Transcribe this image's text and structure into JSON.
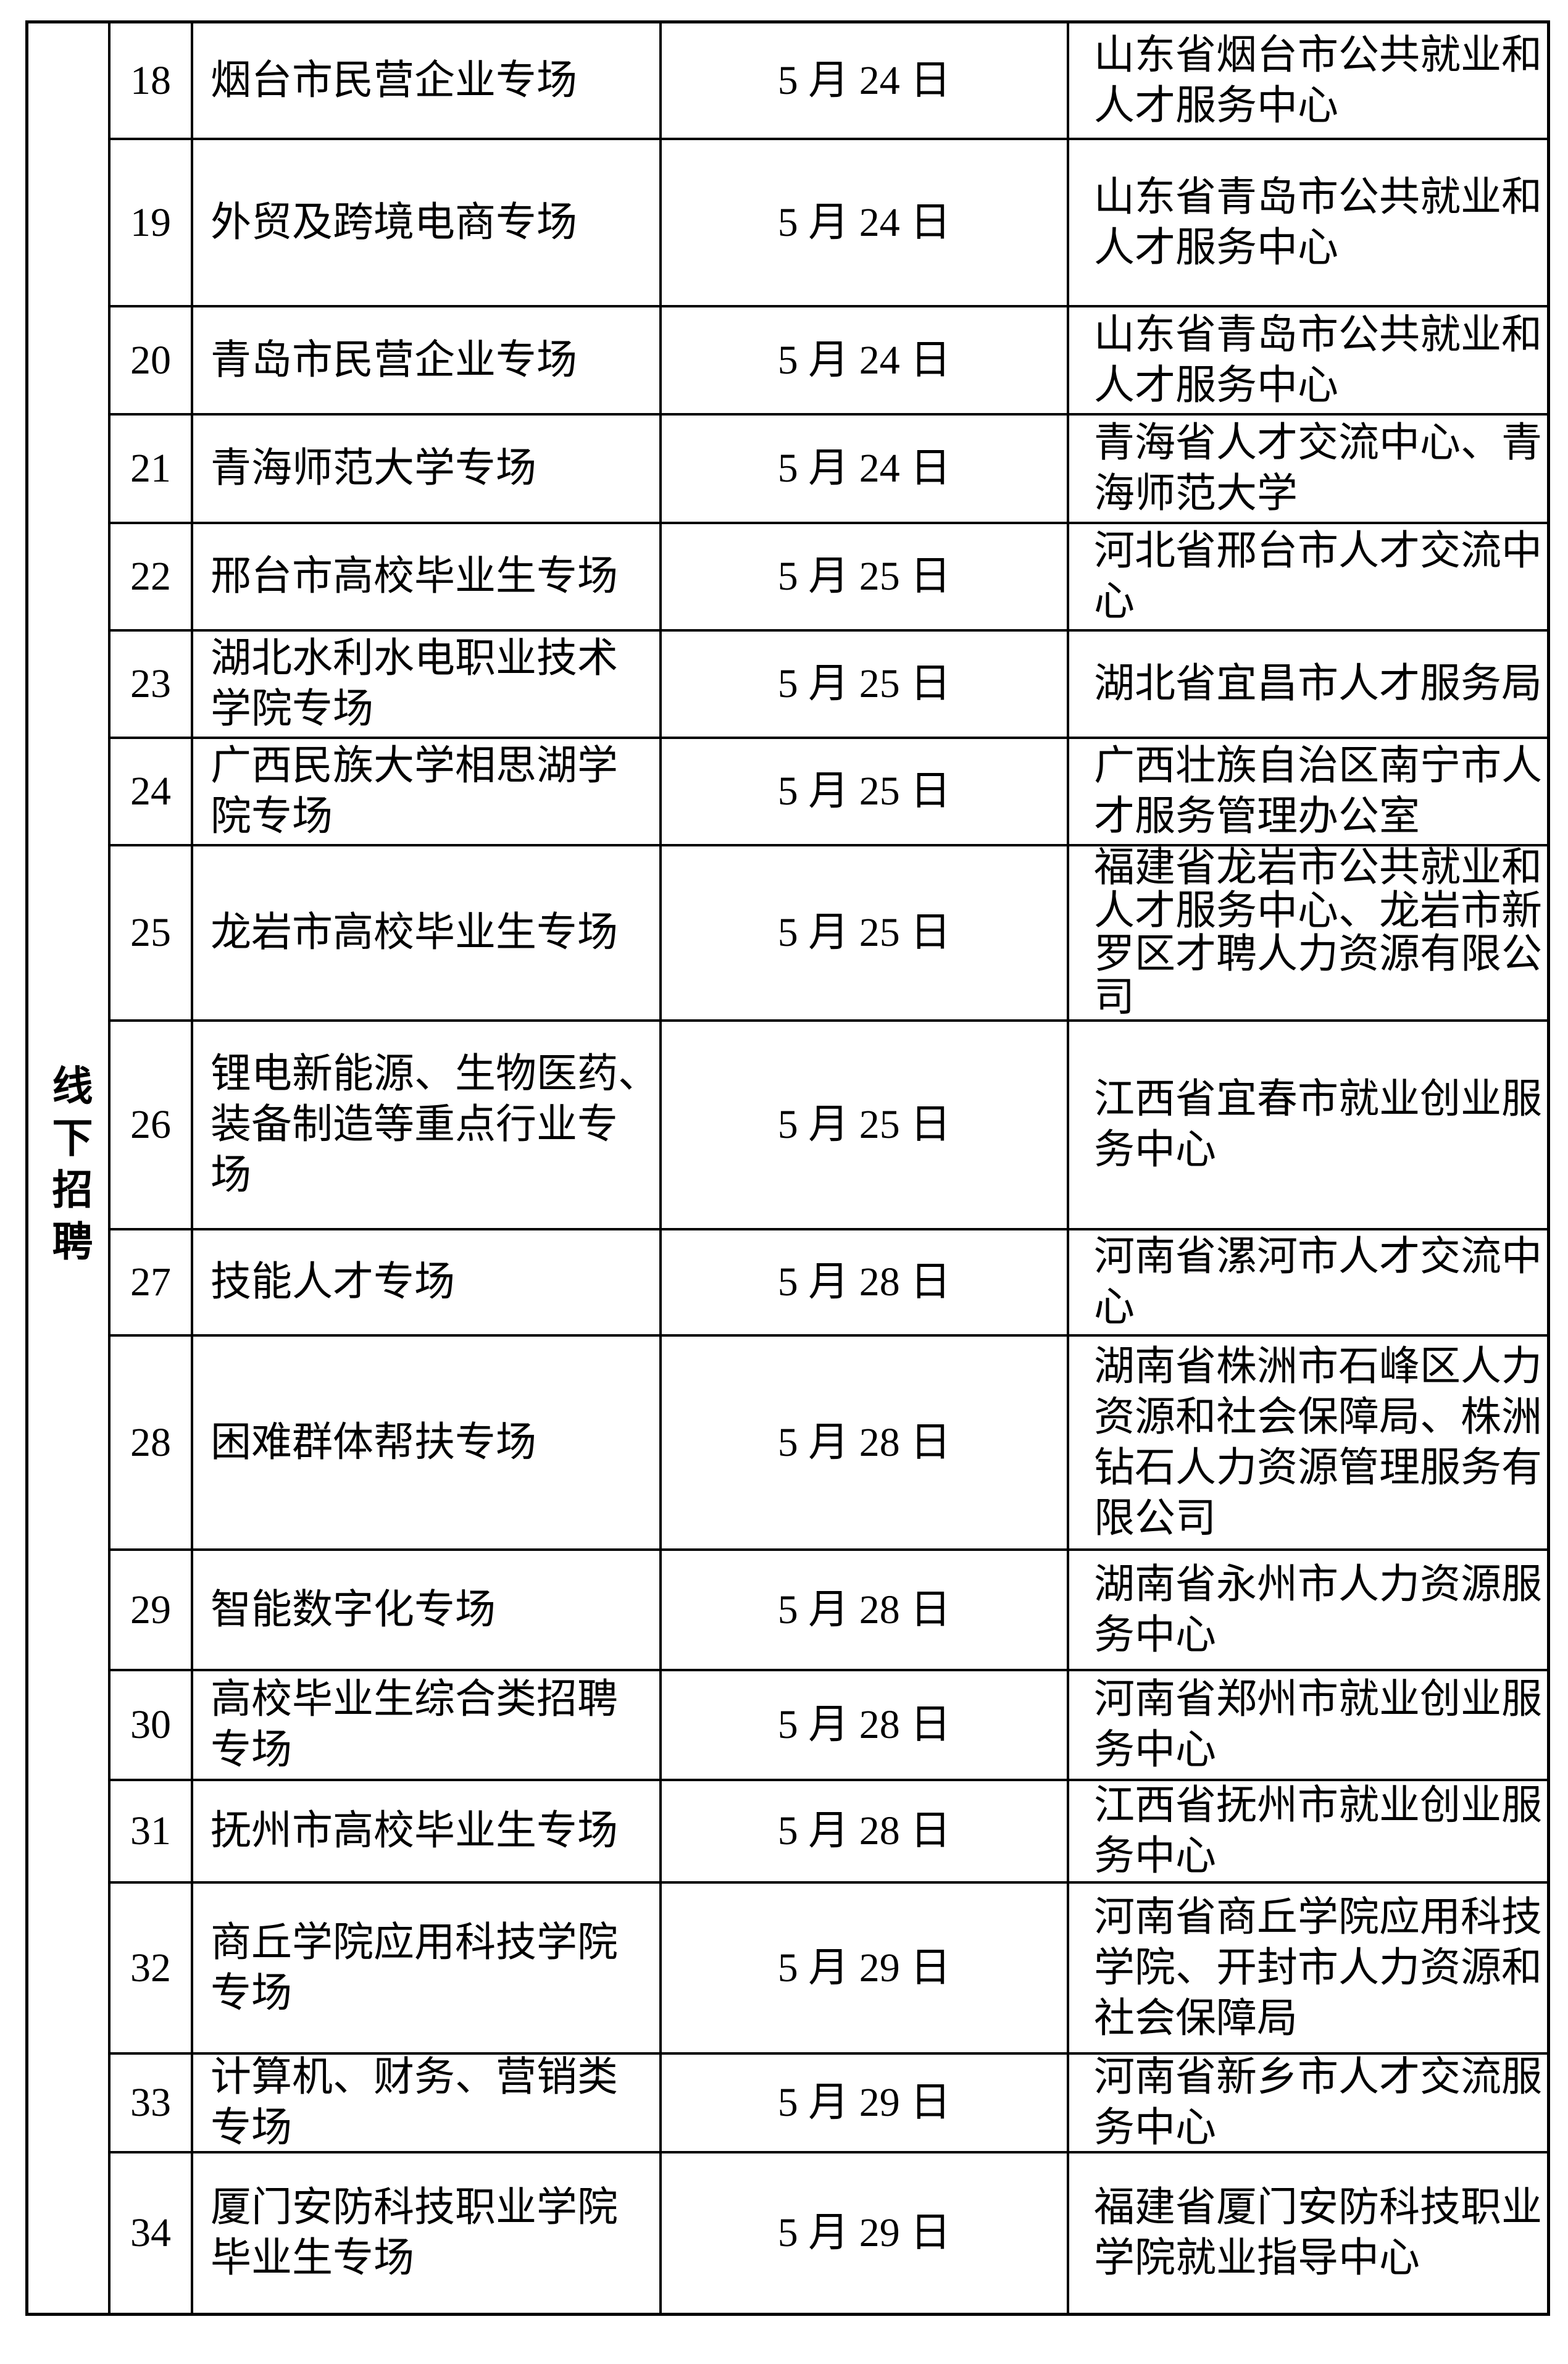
{
  "section": {
    "label": "线下招聘"
  },
  "colors": {
    "border": "#000000",
    "text": "#000000",
    "background": "#ffffff"
  },
  "rows": [
    {
      "no": "18",
      "name": "烟台市民营企业专场",
      "date": "5 月 24 日",
      "org": "山东省烟台市公共就业和\n人才服务中心"
    },
    {
      "no": "19",
      "name": "外贸及跨境电商专场",
      "date": "5 月 24 日",
      "org": "山东省青岛市公共就业和\n人才服务中心"
    },
    {
      "no": "20",
      "name": "青岛市民营企业专场",
      "date": "5 月 24 日",
      "org": "山东省青岛市公共就业和\n人才服务中心"
    },
    {
      "no": "21",
      "name": "青海师范大学专场",
      "date": "5 月 24 日",
      "org": "青海省人才交流中心、青\n海师范大学"
    },
    {
      "no": "22",
      "name": "邢台市高校毕业生专场",
      "date": "5 月 25 日",
      "org": "河北省邢台市人才交流中\n心"
    },
    {
      "no": "23",
      "name": "湖北水利水电职业技术\n学院专场",
      "date": "5 月 25 日",
      "org": "湖北省宜昌市人才服务局"
    },
    {
      "no": "24",
      "name": "广西民族大学相思湖学\n院专场",
      "date": "5 月 25 日",
      "org": "广西壮族自治区南宁市人\n才服务管理办公室"
    },
    {
      "no": "25",
      "name": "龙岩市高校毕业生专场",
      "date": "5 月 25 日",
      "org": "福建省龙岩市公共就业和\n人才服务中心、龙岩市新\n罗区才聘人力资源有限公\n司"
    },
    {
      "no": "26",
      "name": "锂电新能源、生物医药、\n装备制造等重点行业专\n场",
      "date": "5 月 25 日",
      "org": "江西省宜春市就业创业服\n务中心"
    },
    {
      "no": "27",
      "name": "技能人才专场",
      "date": "5 月 28 日",
      "org": "河南省漯河市人才交流中\n心"
    },
    {
      "no": "28",
      "name": "困难群体帮扶专场",
      "date": "5 月 28 日",
      "org": "湖南省株洲市石峰区人力\n资源和社会保障局、株洲\n钻石人力资源管理服务有\n限公司"
    },
    {
      "no": "29",
      "name": "智能数字化专场",
      "date": "5 月 28 日",
      "org": "湖南省永州市人力资源服\n务中心"
    },
    {
      "no": "30",
      "name": "高校毕业生综合类招聘\n专场",
      "date": "5 月 28 日",
      "org": "河南省郑州市就业创业服\n务中心"
    },
    {
      "no": "31",
      "name": "抚州市高校毕业生专场",
      "date": "5 月 28 日",
      "org": "江西省抚州市就业创业服\n务中心"
    },
    {
      "no": "32",
      "name": "商丘学院应用科技学院\n专场",
      "date": "5 月 29 日",
      "org": "河南省商丘学院应用科技\n学院、开封市人力资源和\n社会保障局"
    },
    {
      "no": "33",
      "name": "计算机、财务、营销类\n专场",
      "date": "5 月 29 日",
      "org": "河南省新乡市人才交流服\n务中心"
    },
    {
      "no": "34",
      "name": "厦门安防科技职业学院\n毕业生专场",
      "date": "5 月 29 日",
      "org": "福建省厦门安防科技职业\n学院就业指导中心"
    }
  ]
}
